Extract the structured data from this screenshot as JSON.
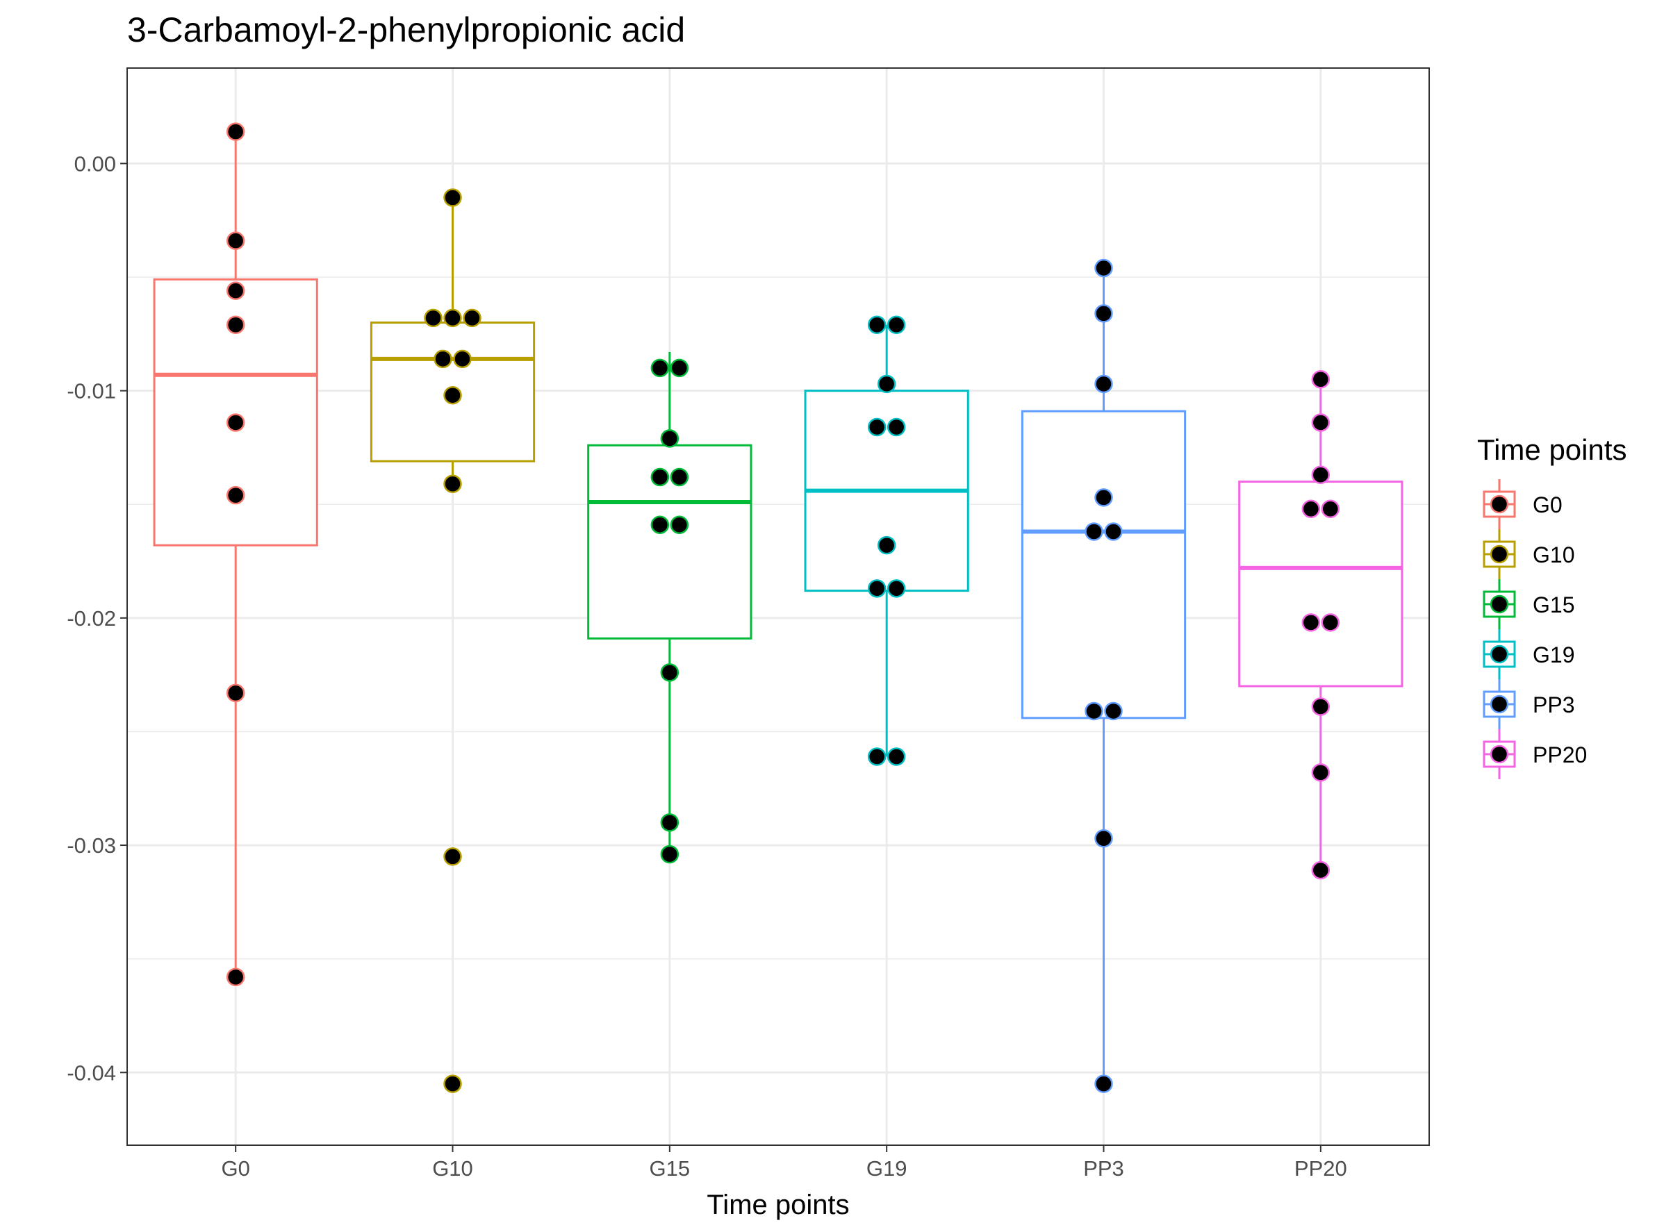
{
  "chart_data": {
    "type": "box",
    "title": "3-Carbamoyl-2-phenylpropionic acid",
    "xlabel": "Time points",
    "ylabel": "",
    "ylim": [
      -0.0432,
      0.0042
    ],
    "yticks": [
      0.0,
      -0.01,
      -0.02,
      -0.03,
      -0.04
    ],
    "ytick_labels": [
      "0.00",
      "-0.01",
      "-0.02",
      "-0.03",
      "-0.04"
    ],
    "grid": true,
    "legend": {
      "title": "Time points",
      "position": "right"
    },
    "categories": [
      "G0",
      "G10",
      "G15",
      "G19",
      "PP3",
      "PP20"
    ],
    "series": [
      {
        "name": "G0",
        "color": "#F8766D",
        "box": {
          "lower_whisker": -0.0358,
          "q1": -0.0168,
          "median": -0.0093,
          "q3": -0.0051,
          "upper_whisker": 0.0014
        },
        "points": [
          0.0014,
          -0.0034,
          -0.0056,
          -0.0071,
          -0.0114,
          -0.0146,
          -0.0233,
          -0.0358
        ]
      },
      {
        "name": "G10",
        "color": "#B79F00",
        "box": {
          "lower_whisker": -0.0141,
          "q1": -0.0131,
          "median": -0.0086,
          "q3": -0.007,
          "upper_whisker": -0.0015
        },
        "points": [
          -0.0015,
          -0.0068,
          -0.0068,
          -0.0068,
          -0.0086,
          -0.0086,
          -0.0102,
          -0.0141,
          -0.0305,
          -0.0405
        ]
      },
      {
        "name": "G15",
        "color": "#00BA38",
        "box": {
          "lower_whisker": -0.0304,
          "q1": -0.0209,
          "median": -0.0149,
          "q3": -0.0124,
          "upper_whisker": -0.0083
        },
        "points": [
          -0.009,
          -0.009,
          -0.0121,
          -0.0138,
          -0.0138,
          -0.0159,
          -0.0159,
          -0.0224,
          -0.029,
          -0.0304
        ]
      },
      {
        "name": "G19",
        "color": "#00BFC4",
        "box": {
          "lower_whisker": -0.0261,
          "q1": -0.0188,
          "median": -0.0144,
          "q3": -0.01,
          "upper_whisker": -0.0071
        },
        "points": [
          -0.0071,
          -0.0071,
          -0.0097,
          -0.0116,
          -0.0116,
          -0.0168,
          -0.0187,
          -0.0187,
          -0.0261,
          -0.0261
        ]
      },
      {
        "name": "PP3",
        "color": "#619CFF",
        "box": {
          "lower_whisker": -0.0405,
          "q1": -0.0244,
          "median": -0.0162,
          "q3": -0.0109,
          "upper_whisker": -0.0046
        },
        "points": [
          -0.0046,
          -0.0066,
          -0.0097,
          -0.0147,
          -0.0162,
          -0.0162,
          -0.0241,
          -0.0241,
          -0.0297,
          -0.0405
        ]
      },
      {
        "name": "PP20",
        "color": "#F564E3",
        "box": {
          "lower_whisker": -0.0311,
          "q1": -0.023,
          "median": -0.0178,
          "q3": -0.014,
          "upper_whisker": -0.0095
        },
        "points": [
          -0.0095,
          -0.0114,
          -0.0137,
          -0.0152,
          -0.0152,
          -0.0202,
          -0.0202,
          -0.0239,
          -0.0268,
          -0.0311
        ]
      }
    ]
  }
}
